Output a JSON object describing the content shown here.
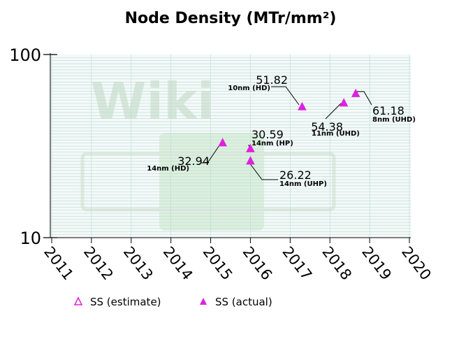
{
  "chart_data": {
    "type": "scatter",
    "title": "Node Density (MTr/mm²)",
    "yscale": "log",
    "ylim": [
      10,
      100
    ],
    "xlim": [
      2011,
      2020
    ],
    "x_ticks": [
      "2011",
      "2012",
      "2013",
      "2014",
      "2015",
      "2016",
      "2017",
      "2018",
      "2019",
      "2020"
    ],
    "y_ticks": [
      "10",
      "100"
    ],
    "colors": {
      "marker": "#dd22dd",
      "grid": "#b8dcd6",
      "plot_bg": "#f4f9f8",
      "watermark": "#c8ddc8"
    },
    "watermark": "Wiki",
    "series": [
      {
        "name": "SS (estimate)",
        "marker": "triangle-open",
        "points": []
      },
      {
        "name": "SS (actual)",
        "marker": "triangle-filled",
        "points": [
          {
            "x": 2015.3,
            "y": 32.94,
            "value": "32.94",
            "node": "14nm (HD)"
          },
          {
            "x": 2016.0,
            "y": 30.59,
            "value": "30.59",
            "node": "14nm (HP)"
          },
          {
            "x": 2016.0,
            "y": 26.22,
            "value": "26.22",
            "node": "14nm (UHP)"
          },
          {
            "x": 2017.3,
            "y": 51.82,
            "value": "51.82",
            "node": "10nm (HD)"
          },
          {
            "x": 2018.35,
            "y": 54.38,
            "value": "54.38",
            "node": "11nm (UHD)"
          },
          {
            "x": 2018.65,
            "y": 61.18,
            "value": "61.18",
            "node": "8nm (UHD)"
          }
        ]
      }
    ]
  }
}
